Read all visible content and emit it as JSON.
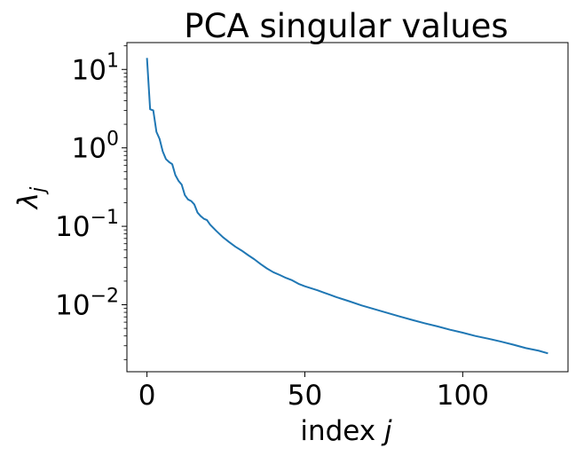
{
  "chart_data": {
    "type": "line",
    "title": "PCA singular values",
    "xlabel": "index j",
    "ylabel": "λj",
    "y_scale": "log",
    "xlim": [
      -6.35,
      133.35
    ],
    "ylim": [
      0.0014,
      22
    ],
    "x_ticks": [
      0,
      50,
      100
    ],
    "x_tick_labels": [
      "0",
      "50",
      "100"
    ],
    "y_ticks": [
      0.01,
      0.1,
      1,
      10
    ],
    "y_tick_labels": [
      {
        "base": "10",
        "exp": "−2"
      },
      {
        "base": "10",
        "exp": "−1"
      },
      {
        "base": "10",
        "exp": "0"
      },
      {
        "base": "10",
        "exp": "1"
      }
    ],
    "grid": false,
    "line_color": "#1f77b4",
    "series": [
      {
        "x": [
          0,
          1,
          2,
          3,
          4,
          5,
          6,
          7,
          8,
          9,
          10,
          11,
          12,
          13,
          14,
          15,
          16,
          17,
          18,
          19,
          20,
          22,
          24,
          26,
          28,
          30,
          32,
          34,
          36,
          38,
          40,
          42,
          44,
          46,
          48,
          50,
          52,
          54,
          56,
          58,
          60,
          64,
          68,
          72,
          76,
          80,
          84,
          88,
          92,
          96,
          100,
          104,
          108,
          112,
          116,
          120,
          124,
          127
        ],
        "y": [
          14.0,
          3.1,
          3.0,
          1.6,
          1.3,
          0.9,
          0.72,
          0.66,
          0.62,
          0.45,
          0.38,
          0.34,
          0.25,
          0.22,
          0.21,
          0.19,
          0.15,
          0.135,
          0.125,
          0.12,
          0.105,
          0.087,
          0.073,
          0.063,
          0.055,
          0.049,
          0.043,
          0.038,
          0.033,
          0.029,
          0.026,
          0.024,
          0.022,
          0.0205,
          0.0185,
          0.0172,
          0.0162,
          0.0153,
          0.0143,
          0.0134,
          0.0125,
          0.0111,
          0.0098,
          0.0088,
          0.0079,
          0.0071,
          0.0064,
          0.0058,
          0.0053,
          0.0048,
          0.0044,
          0.004,
          0.0037,
          0.0034,
          0.0031,
          0.0028,
          0.0026,
          0.0024
        ]
      }
    ]
  }
}
